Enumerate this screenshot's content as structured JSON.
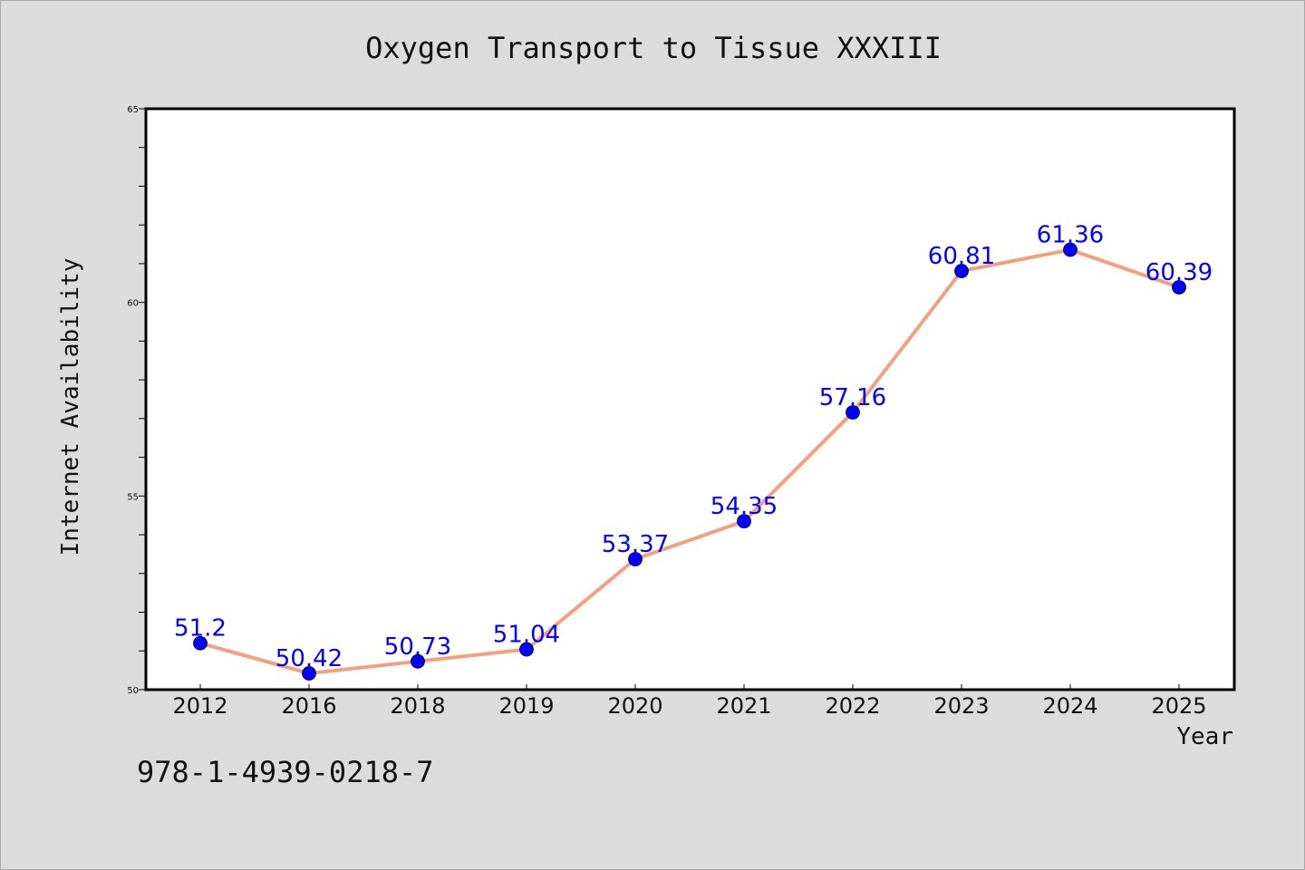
{
  "chart_data": {
    "type": "line",
    "title": "Oxygen Transport to Tissue XXXIII",
    "xlabel": "Year",
    "ylabel": "Internet Availability",
    "categories": [
      "2012",
      "2016",
      "2018",
      "2019",
      "2020",
      "2021",
      "2022",
      "2023",
      "2024",
      "2025"
    ],
    "series": [
      {
        "values": [
          51.2,
          50.42,
          50.73,
          51.04,
          53.37,
          54.35,
          57.16,
          60.81,
          61.36,
          60.39
        ],
        "data_labels": [
          "51.2",
          "50.42",
          "50.73",
          "51.04",
          "53.37",
          "54.35",
          "57.16",
          "60.81",
          "61.36",
          "60.39"
        ],
        "line_color": "#f4a07e",
        "marker_color": "#0000ff",
        "label_color": "#0000ff"
      }
    ],
    "ylim": [
      50,
      65
    ],
    "y_ticks": [
      "50",
      "55",
      "60",
      "65"
    ],
    "grid": false,
    "legend": "none"
  },
  "footer": {
    "isbn": "978-1-4939-0218-7"
  },
  "colors": {
    "background": "#dcdcdc",
    "plot_background": "#ffffff",
    "axis": "#000000"
  }
}
